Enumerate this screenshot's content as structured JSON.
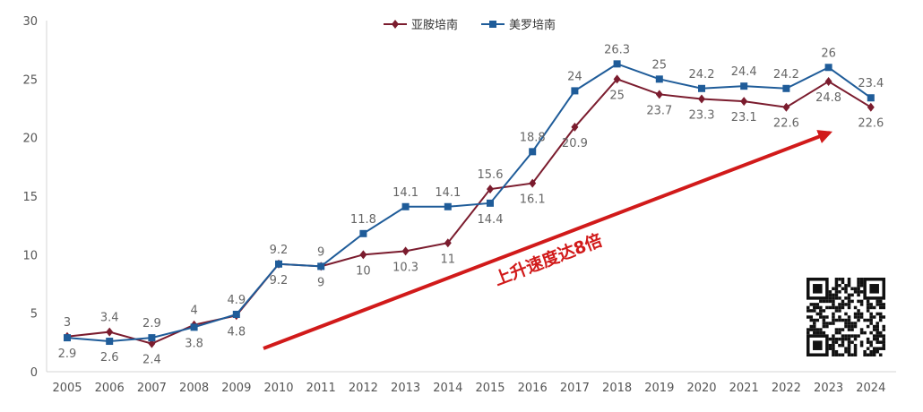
{
  "chart_data": {
    "type": "line",
    "categories": [
      "2005",
      "2006",
      "2007",
      "2008",
      "2009",
      "2010",
      "2011",
      "2012",
      "2013",
      "2014",
      "2015",
      "2016",
      "2017",
      "2018",
      "2019",
      "2020",
      "2021",
      "2022",
      "2023",
      "2024"
    ],
    "ylim": [
      0,
      30
    ],
    "yticks": [
      0,
      5,
      10,
      15,
      20,
      25,
      30
    ],
    "grid": false,
    "legend_position": "top-center",
    "series": [
      {
        "name": "亚胺培南",
        "color": "#7b1c2e",
        "marker": "diamond",
        "values": [
          3,
          3.4,
          2.4,
          4,
          4.8,
          9.2,
          9,
          10,
          10.3,
          11,
          15.6,
          16.1,
          20.9,
          25,
          23.7,
          23.3,
          23.1,
          22.6,
          24.8,
          22.6
        ],
        "labels": [
          "3",
          "3.4",
          "2.4",
          "4",
          "4.8",
          "9.2",
          "9",
          "10",
          "10.3",
          "11",
          "15.6",
          "16.1",
          "20.9",
          "25",
          "23.7",
          "23.3",
          "23.1",
          "22.6",
          "24.8",
          "22.6"
        ]
      },
      {
        "name": "美罗培南",
        "color": "#1f5c99",
        "marker": "square",
        "values": [
          2.9,
          2.6,
          2.9,
          3.8,
          4.9,
          9.2,
          9,
          11.8,
          14.1,
          14.1,
          14.4,
          18.8,
          24,
          26.3,
          25,
          24.2,
          24.4,
          24.2,
          26,
          23.4
        ],
        "labels": [
          "2.9",
          "2.6",
          "2.9",
          "3.8",
          "4.9",
          "9.2",
          "9",
          "11.8",
          "14.1",
          "14.1",
          "14.4",
          "18.8",
          "24",
          "26.3",
          "25",
          "24.2",
          "24.4",
          "24.2",
          "26",
          "23.4"
        ]
      }
    ],
    "annotation": {
      "text": "上升速度达8倍",
      "color": "#d11a1a"
    }
  }
}
